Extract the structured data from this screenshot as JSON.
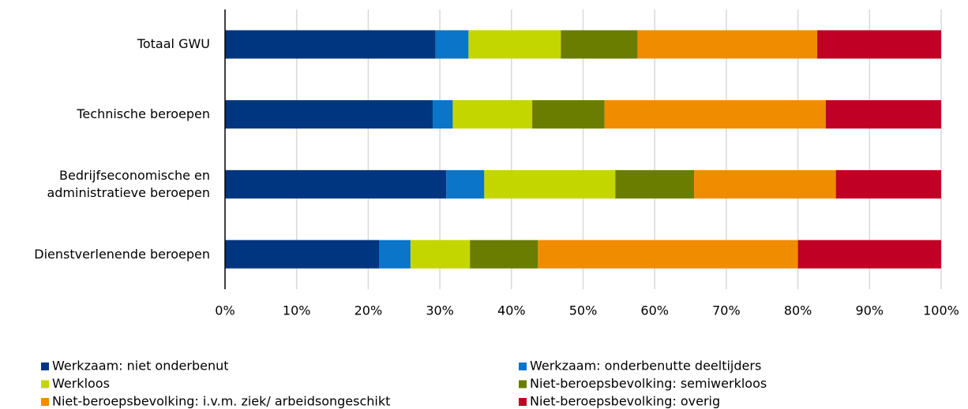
{
  "chart_data": {
    "type": "stacked-bar-horizontal",
    "categories": [
      "Totaal GWU",
      "Technische beroepen",
      "Bedrijfseconomische en\nadministratieve beroepen",
      "Dienstverlenende beroepen"
    ],
    "series": [
      {
        "name": "Werkzaam: niet onderbenut",
        "color": "#003580",
        "values": [
          29.4,
          29.0,
          30.9,
          21.5
        ]
      },
      {
        "name": "Werkzaam: onderbenutte deeltijders",
        "color": "#0a75c9",
        "values": [
          4.6,
          2.8,
          5.3,
          4.4
        ]
      },
      {
        "name": "Werkloos",
        "color": "#c3d600",
        "values": [
          12.9,
          11.1,
          18.3,
          8.3
        ]
      },
      {
        "name": "Niet-beroepsbevolking: semiwerkloos",
        "color": "#6a7d00",
        "values": [
          10.7,
          10.1,
          11.0,
          9.5
        ]
      },
      {
        "name": "Niet-beroepsbevolking: i.v.m. ziek/ arbeidsongeschikt",
        "color": "#f08c00",
        "values": [
          25.1,
          30.9,
          19.8,
          36.3
        ]
      },
      {
        "name": "Niet-beroepsbevolking: overig",
        "color": "#c00025",
        "values": [
          17.3,
          16.1,
          14.7,
          20.0
        ]
      }
    ],
    "xlim": [
      0,
      100
    ],
    "xticks": [
      {
        "value": 0,
        "label": "0%"
      },
      {
        "value": 10,
        "label": "10%"
      },
      {
        "value": 20,
        "label": "20%"
      },
      {
        "value": 30,
        "label": "30%"
      },
      {
        "value": 40,
        "label": "40%"
      },
      {
        "value": 50,
        "label": "50%"
      },
      {
        "value": 60,
        "label": "60%"
      },
      {
        "value": 70,
        "label": "70%"
      },
      {
        "value": 80,
        "label": "80%"
      },
      {
        "value": 90,
        "label": "90%"
      },
      {
        "value": 100,
        "label": "100%"
      }
    ],
    "grid": true
  }
}
